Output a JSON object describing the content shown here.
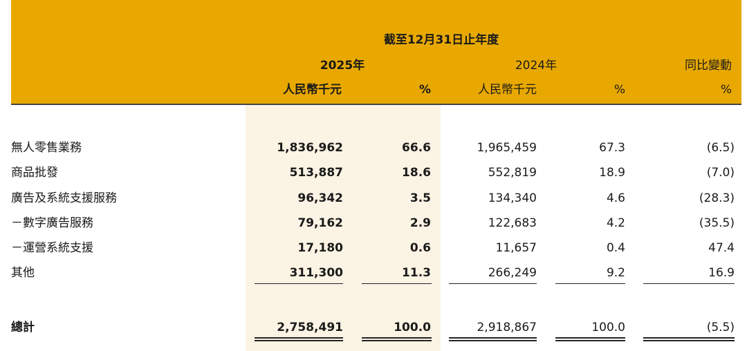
{
  "header": {
    "period": "截至12月31日止年度",
    "year_2025": "2025年",
    "year_2024": "2024年",
    "yoy": "同比變動",
    "unit_2025": "人民幣千元",
    "pct_2025": "%",
    "unit_2024": "人民幣千元",
    "pct_2024": "%",
    "pct_yoy": "%"
  },
  "rows": [
    {
      "label": "無人零售業務",
      "v2025": "1,836,962",
      "p2025": "66.6",
      "v2024": "1,965,459",
      "p2024": "67.3",
      "yoy": "(6.5)"
    },
    {
      "label": "商品批發",
      "v2025": "513,887",
      "p2025": "18.6",
      "v2024": "552,819",
      "p2024": "18.9",
      "yoy": "(7.0)"
    },
    {
      "label": "廣告及系統支援服務",
      "v2025": "96,342",
      "p2025": "3.5",
      "v2024": "134,340",
      "p2024": "4.6",
      "yoy": "(28.3)"
    },
    {
      "label": "－數字廣告服務",
      "v2025": "79,162",
      "p2025": "2.9",
      "v2024": "122,683",
      "p2024": "4.2",
      "yoy": "(35.5)"
    },
    {
      "label": "－運營系統支援",
      "v2025": "17,180",
      "p2025": "0.6",
      "v2024": "11,657",
      "p2024": "0.4",
      "yoy": "47.4"
    },
    {
      "label": "其他",
      "v2025": "311,300",
      "p2025": "11.3",
      "v2024": "266,249",
      "p2024": "9.2",
      "yoy": "16.9"
    }
  ],
  "total": {
    "label": "總計",
    "v2025": "2,758,491",
    "p2025": "100.0",
    "v2024": "2,918,867",
    "p2024": "100.0",
    "yoy": "(5.5)"
  },
  "colors": {
    "header_bg": "#e8a800",
    "shade_2025": "#fbf3e4"
  }
}
